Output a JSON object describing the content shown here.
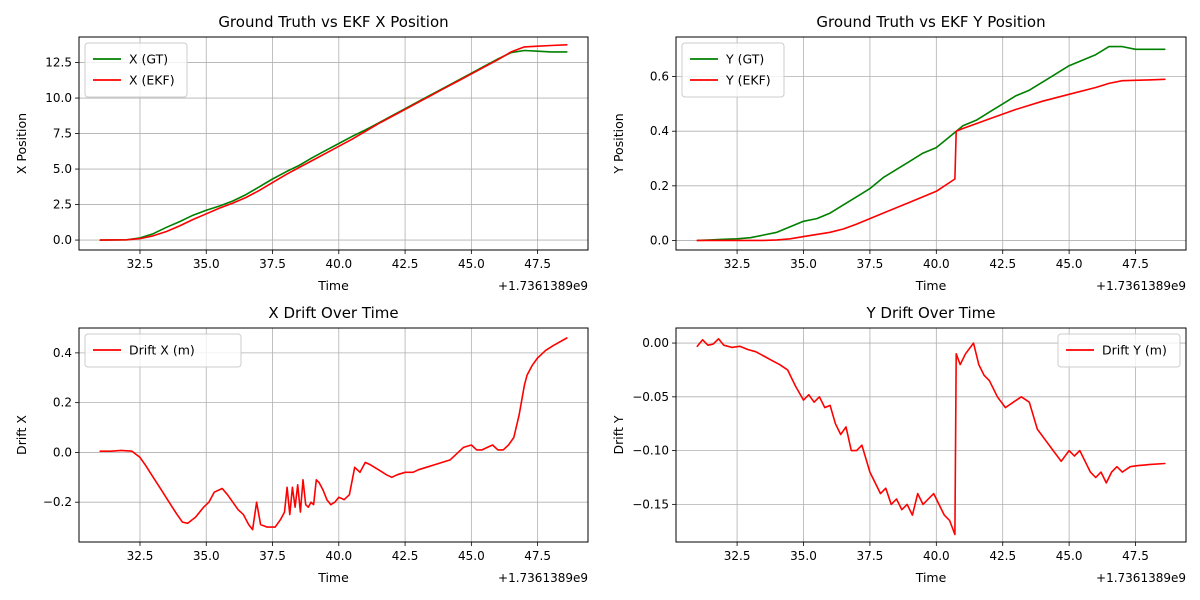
{
  "colors": {
    "gt": "#008000",
    "ekf": "#ff0000",
    "grid": "#b0b0b0"
  },
  "chart_data": [
    {
      "id": "x-position",
      "type": "line",
      "title": "Ground Truth vs EKF X Position",
      "xlabel": "Time",
      "ylabel": "X Position",
      "x_offset_label": "+1.7361389e9",
      "xlim": [
        30.2,
        49.4
      ],
      "ylim": [
        -0.7,
        14.3
      ],
      "xticks": [
        32.5,
        35.0,
        37.5,
        40.0,
        42.5,
        45.0,
        47.5
      ],
      "xtick_labels": [
        "32.5",
        "35.0",
        "37.5",
        "40.0",
        "42.5",
        "45.0",
        "47.5"
      ],
      "yticks": [
        0,
        2.5,
        5,
        7.5,
        10,
        12.5
      ],
      "ytick_labels": [
        "0.0",
        "2.5",
        "5.0",
        "7.5",
        "10.0",
        "12.5"
      ],
      "grid": true,
      "legend_position": "upper-left",
      "series": [
        {
          "name": "X (GT)",
          "color": "#008000",
          "x": [
            31.0,
            32.0,
            32.5,
            33.0,
            33.5,
            34.0,
            34.5,
            35.0,
            35.5,
            36.0,
            36.5,
            37.0,
            37.5,
            38.0,
            38.5,
            39.0,
            39.5,
            40.0,
            40.5,
            41.0,
            41.5,
            42.0,
            42.5,
            43.0,
            43.5,
            44.0,
            44.5,
            45.0,
            45.5,
            46.0,
            46.5,
            47.0,
            47.5,
            48.0,
            48.6
          ],
          "y": [
            0.0,
            0.02,
            0.15,
            0.45,
            0.9,
            1.3,
            1.75,
            2.1,
            2.4,
            2.75,
            3.2,
            3.75,
            4.3,
            4.8,
            5.25,
            5.8,
            6.3,
            6.8,
            7.3,
            7.75,
            8.25,
            8.75,
            9.25,
            9.75,
            10.25,
            10.75,
            11.25,
            11.75,
            12.25,
            12.75,
            13.2,
            13.35,
            13.3,
            13.25,
            13.25
          ]
        },
        {
          "name": "X (EKF)",
          "color": "#ff0000",
          "x": [
            31.0,
            32.0,
            32.5,
            33.0,
            33.5,
            34.0,
            34.5,
            35.0,
            35.5,
            36.0,
            36.5,
            37.0,
            37.5,
            38.0,
            38.5,
            39.0,
            39.5,
            40.0,
            40.5,
            41.0,
            41.5,
            42.0,
            42.5,
            43.0,
            43.5,
            44.0,
            44.5,
            45.0,
            45.5,
            46.0,
            46.5,
            47.0,
            47.5,
            48.0,
            48.6
          ],
          "y": [
            0.0,
            0.02,
            0.1,
            0.3,
            0.6,
            1.0,
            1.45,
            1.85,
            2.25,
            2.6,
            3.0,
            3.5,
            4.05,
            4.6,
            5.1,
            5.6,
            6.1,
            6.6,
            7.1,
            7.65,
            8.2,
            8.7,
            9.2,
            9.7,
            10.2,
            10.7,
            11.2,
            11.7,
            12.2,
            12.7,
            13.25,
            13.6,
            13.65,
            13.7,
            13.75
          ]
        }
      ]
    },
    {
      "id": "y-position",
      "type": "line",
      "title": "Ground Truth vs EKF Y Position",
      "xlabel": "Time",
      "ylabel": "Y Position",
      "x_offset_label": "+1.7361389e9",
      "xlim": [
        30.2,
        49.4
      ],
      "ylim": [
        -0.035,
        0.745
      ],
      "xticks": [
        32.5,
        35.0,
        37.5,
        40.0,
        42.5,
        45.0,
        47.5
      ],
      "xtick_labels": [
        "32.5",
        "35.0",
        "37.5",
        "40.0",
        "42.5",
        "45.0",
        "47.5"
      ],
      "yticks": [
        0,
        0.2,
        0.4,
        0.6
      ],
      "ytick_labels": [
        "0.0",
        "0.2",
        "0.4",
        "0.6"
      ],
      "grid": true,
      "legend_position": "upper-left",
      "series": [
        {
          "name": "Y (GT)",
          "color": "#008000",
          "x": [
            31.0,
            31.5,
            32.0,
            32.5,
            33.0,
            33.5,
            34.0,
            34.5,
            35.0,
            35.5,
            36.0,
            36.5,
            37.0,
            37.5,
            38.0,
            38.5,
            39.0,
            39.5,
            40.0,
            40.5,
            41.0,
            41.5,
            42.0,
            42.5,
            43.0,
            43.5,
            44.0,
            44.5,
            45.0,
            45.5,
            46.0,
            46.5,
            47.0,
            47.5,
            48.0,
            48.6
          ],
          "y": [
            0.0,
            0.002,
            0.004,
            0.006,
            0.01,
            0.02,
            0.03,
            0.05,
            0.07,
            0.08,
            0.1,
            0.13,
            0.16,
            0.19,
            0.23,
            0.26,
            0.29,
            0.32,
            0.34,
            0.38,
            0.42,
            0.44,
            0.47,
            0.5,
            0.53,
            0.55,
            0.58,
            0.61,
            0.64,
            0.66,
            0.68,
            0.71,
            0.71,
            0.7,
            0.7,
            0.7
          ]
        },
        {
          "name": "Y (EKF)",
          "color": "#ff0000",
          "x": [
            31.0,
            32.0,
            33.0,
            33.5,
            34.0,
            34.5,
            35.0,
            35.5,
            36.0,
            36.5,
            37.0,
            38.0,
            39.0,
            40.0,
            40.7,
            40.75,
            41.0,
            42.0,
            43.0,
            44.0,
            45.0,
            46.0,
            46.5,
            47.0,
            48.0,
            48.6
          ],
          "y": [
            0.0,
            0.0,
            0.0,
            0.0,
            0.002,
            0.006,
            0.014,
            0.022,
            0.03,
            0.042,
            0.06,
            0.1,
            0.14,
            0.18,
            0.225,
            0.4,
            0.41,
            0.445,
            0.48,
            0.51,
            0.535,
            0.56,
            0.575,
            0.585,
            0.588,
            0.59
          ]
        }
      ]
    },
    {
      "id": "x-drift",
      "type": "line",
      "title": "X Drift Over Time",
      "xlabel": "Time",
      "ylabel": "Drift X",
      "x_offset_label": "+1.7361389e9",
      "xlim": [
        30.2,
        49.4
      ],
      "ylim": [
        -0.36,
        0.5
      ],
      "xticks": [
        32.5,
        35.0,
        37.5,
        40.0,
        42.5,
        45.0,
        47.5
      ],
      "xtick_labels": [
        "32.5",
        "35.0",
        "37.5",
        "40.0",
        "42.5",
        "45.0",
        "47.5"
      ],
      "yticks": [
        -0.2,
        0,
        0.2,
        0.4
      ],
      "ytick_labels": [
        "−0.2",
        "0.0",
        "0.2",
        "0.4"
      ],
      "grid": true,
      "legend_position": "upper-left",
      "series": [
        {
          "name": "Drift X (m)",
          "color": "#ff0000",
          "x": [
            31.0,
            31.4,
            31.8,
            32.2,
            32.5,
            32.7,
            33.0,
            33.3,
            33.6,
            33.9,
            34.1,
            34.3,
            34.6,
            34.9,
            35.1,
            35.3,
            35.6,
            35.8,
            36.0,
            36.2,
            36.4,
            36.6,
            36.75,
            36.9,
            37.05,
            37.3,
            37.6,
            37.8,
            37.95,
            38.05,
            38.15,
            38.25,
            38.35,
            38.45,
            38.55,
            38.65,
            38.75,
            38.85,
            38.95,
            39.05,
            39.15,
            39.25,
            39.4,
            39.55,
            39.7,
            39.85,
            40.0,
            40.2,
            40.4,
            40.6,
            40.8,
            41.0,
            41.2,
            41.5,
            41.8,
            42.0,
            42.2,
            42.5,
            42.8,
            43.0,
            43.3,
            43.6,
            43.9,
            44.2,
            44.5,
            44.7,
            45.0,
            45.2,
            45.4,
            45.6,
            45.8,
            46.0,
            46.2,
            46.4,
            46.6,
            46.8,
            47.0,
            47.1,
            47.3,
            47.5,
            47.8,
            48.1,
            48.6
          ],
          "y": [
            0.005,
            0.005,
            0.008,
            0.005,
            -0.02,
            -0.05,
            -0.1,
            -0.15,
            -0.2,
            -0.25,
            -0.28,
            -0.285,
            -0.26,
            -0.22,
            -0.2,
            -0.16,
            -0.145,
            -0.17,
            -0.2,
            -0.23,
            -0.25,
            -0.29,
            -0.31,
            -0.2,
            -0.29,
            -0.3,
            -0.3,
            -0.27,
            -0.24,
            -0.14,
            -0.25,
            -0.14,
            -0.22,
            -0.13,
            -0.24,
            -0.11,
            -0.21,
            -0.22,
            -0.2,
            -0.21,
            -0.11,
            -0.12,
            -0.15,
            -0.19,
            -0.21,
            -0.2,
            -0.18,
            -0.19,
            -0.17,
            -0.06,
            -0.08,
            -0.04,
            -0.05,
            -0.07,
            -0.09,
            -0.1,
            -0.09,
            -0.08,
            -0.08,
            -0.07,
            -0.06,
            -0.05,
            -0.04,
            -0.03,
            0.0,
            0.02,
            0.03,
            0.01,
            0.01,
            0.02,
            0.03,
            0.01,
            0.01,
            0.03,
            0.06,
            0.15,
            0.27,
            0.31,
            0.35,
            0.38,
            0.41,
            0.43,
            0.46
          ]
        }
      ]
    },
    {
      "id": "y-drift",
      "type": "line",
      "title": "Y Drift Over Time",
      "xlabel": "Time",
      "ylabel": "Drift Y",
      "x_offset_label": "+1.7361389e9",
      "xlim": [
        30.2,
        49.4
      ],
      "ylim": [
        -0.185,
        0.014
      ],
      "xticks": [
        32.5,
        35.0,
        37.5,
        40.0,
        42.5,
        45.0,
        47.5
      ],
      "xtick_labels": [
        "32.5",
        "35.0",
        "37.5",
        "40.0",
        "42.5",
        "45.0",
        "47.5"
      ],
      "yticks": [
        -0.15,
        -0.1,
        -0.05,
        0
      ],
      "ytick_labels": [
        "−0.15",
        "−0.10",
        "−0.05",
        "0.00"
      ],
      "grid": true,
      "legend_position": "upper-right",
      "series": [
        {
          "name": "Drift Y (m)",
          "color": "#ff0000",
          "x": [
            31.0,
            31.2,
            31.4,
            31.6,
            31.8,
            32.0,
            32.3,
            32.6,
            32.9,
            33.2,
            33.5,
            33.8,
            34.1,
            34.4,
            34.7,
            35.0,
            35.2,
            35.4,
            35.6,
            35.8,
            36.0,
            36.2,
            36.4,
            36.6,
            36.8,
            37.0,
            37.2,
            37.5,
            37.7,
            37.9,
            38.1,
            38.3,
            38.5,
            38.7,
            38.9,
            39.1,
            39.3,
            39.5,
            39.7,
            39.9,
            40.1,
            40.3,
            40.5,
            40.7,
            40.75,
            40.9,
            41.1,
            41.4,
            41.6,
            41.8,
            42.0,
            42.3,
            42.6,
            42.9,
            43.2,
            43.5,
            43.8,
            44.1,
            44.4,
            44.7,
            45.0,
            45.2,
            45.4,
            45.6,
            45.8,
            46.0,
            46.2,
            46.4,
            46.6,
            46.8,
            47.0,
            47.3,
            47.6,
            48.0,
            48.6
          ],
          "y": [
            -0.003,
            0.003,
            -0.002,
            -0.001,
            0.004,
            -0.002,
            -0.004,
            -0.003,
            -0.006,
            -0.008,
            -0.012,
            -0.016,
            -0.02,
            -0.025,
            -0.04,
            -0.053,
            -0.048,
            -0.055,
            -0.05,
            -0.06,
            -0.058,
            -0.075,
            -0.085,
            -0.078,
            -0.1,
            -0.1,
            -0.095,
            -0.12,
            -0.13,
            -0.14,
            -0.135,
            -0.15,
            -0.145,
            -0.155,
            -0.15,
            -0.16,
            -0.14,
            -0.15,
            -0.145,
            -0.14,
            -0.15,
            -0.16,
            -0.165,
            -0.178,
            -0.01,
            -0.02,
            -0.01,
            0.0,
            -0.02,
            -0.03,
            -0.035,
            -0.05,
            -0.06,
            -0.055,
            -0.05,
            -0.055,
            -0.08,
            -0.09,
            -0.1,
            -0.11,
            -0.1,
            -0.105,
            -0.1,
            -0.11,
            -0.12,
            -0.125,
            -0.12,
            -0.13,
            -0.12,
            -0.115,
            -0.12,
            -0.115,
            -0.114,
            -0.113,
            -0.112
          ]
        }
      ]
    }
  ]
}
